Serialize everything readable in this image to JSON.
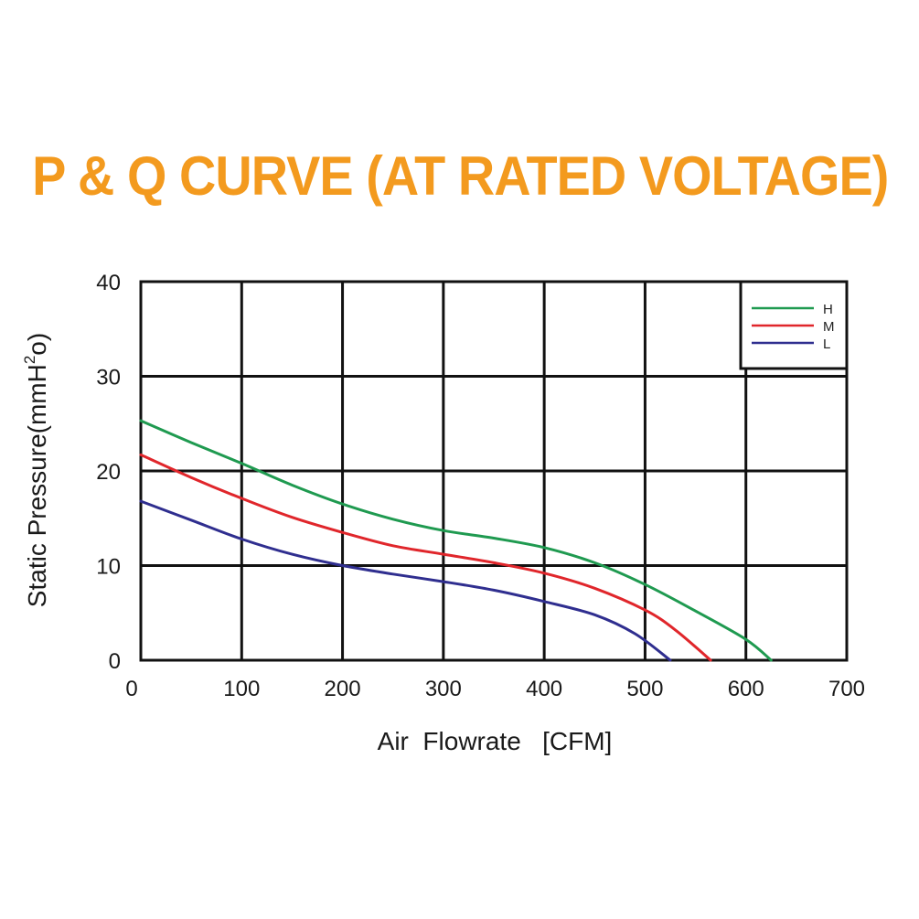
{
  "chart_data": {
    "type": "line",
    "title": "P & Q CURVE (AT RATED VOLTAGE)",
    "xlabel": "Air  Flowrate   [CFM]",
    "ylabel_main": "Static Pressure(mmH",
    "ylabel_sup": "2",
    "ylabel_end": "o)",
    "xlim": [
      0,
      700
    ],
    "ylim": [
      0,
      40
    ],
    "xticks": [
      0,
      100,
      200,
      300,
      400,
      500,
      600,
      700
    ],
    "yticks": [
      0,
      10,
      20,
      30,
      40
    ],
    "grid": true,
    "legend_position": "top-right",
    "series": [
      {
        "name": "H",
        "color": "#1f9a50",
        "points": [
          [
            0,
            25.3
          ],
          [
            50,
            23.0
          ],
          [
            100,
            20.8
          ],
          [
            150,
            18.5
          ],
          [
            200,
            16.5
          ],
          [
            250,
            14.9
          ],
          [
            300,
            13.7
          ],
          [
            350,
            12.9
          ],
          [
            400,
            11.9
          ],
          [
            450,
            10.3
          ],
          [
            500,
            8.0
          ],
          [
            550,
            5.2
          ],
          [
            600,
            2.2
          ],
          [
            625,
            0
          ]
        ]
      },
      {
        "name": "M",
        "color": "#e0262b",
        "points": [
          [
            0,
            21.7
          ],
          [
            50,
            19.3
          ],
          [
            100,
            17.1
          ],
          [
            150,
            15.1
          ],
          [
            200,
            13.5
          ],
          [
            250,
            12.1
          ],
          [
            300,
            11.2
          ],
          [
            350,
            10.3
          ],
          [
            400,
            9.2
          ],
          [
            450,
            7.6
          ],
          [
            500,
            5.3
          ],
          [
            530,
            3.2
          ],
          [
            565,
            0
          ]
        ]
      },
      {
        "name": "L",
        "color": "#2f2e8f",
        "points": [
          [
            0,
            16.8
          ],
          [
            50,
            14.8
          ],
          [
            100,
            12.8
          ],
          [
            150,
            11.2
          ],
          [
            200,
            10.0
          ],
          [
            250,
            9.1
          ],
          [
            300,
            8.3
          ],
          [
            350,
            7.4
          ],
          [
            400,
            6.2
          ],
          [
            450,
            4.8
          ],
          [
            490,
            2.8
          ],
          [
            525,
            0
          ]
        ]
      }
    ]
  }
}
